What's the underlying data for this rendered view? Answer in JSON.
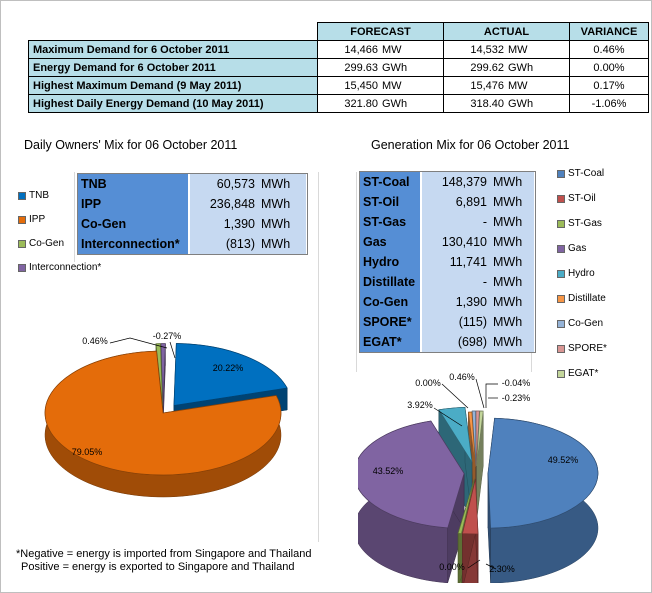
{
  "summary": {
    "headers": [
      "FORECAST",
      "ACTUAL",
      "VARIANCE"
    ],
    "rows": [
      {
        "label": "Maximum Demand for 6 October 2011",
        "forecast": "14,466",
        "forecast_unit": "MW",
        "actual": "14,532",
        "actual_unit": "MW",
        "variance": "0.46%"
      },
      {
        "label": "Energy Demand for 6 October 2011",
        "forecast": "299.63",
        "forecast_unit": "GWh",
        "actual": "299.62",
        "actual_unit": "GWh",
        "variance": "0.00%"
      },
      {
        "label": "Highest Maximum Demand (9 May 2011)",
        "forecast": "15,450",
        "forecast_unit": "MW",
        "actual": "15,476",
        "actual_unit": "MW",
        "variance": "0.17%"
      },
      {
        "label": "Highest Daily Energy Demand (10 May 2011)",
        "forecast": "321.80",
        "forecast_unit": "GWh",
        "actual": "318.40",
        "actual_unit": "GWh",
        "variance": "-1.06%"
      }
    ]
  },
  "owners_mix": {
    "title": "Daily Owners' Mix for 06 October 2011",
    "rows": [
      {
        "name": "TNB",
        "value": "60,573",
        "unit": "MWh"
      },
      {
        "name": "IPP",
        "value": "236,848",
        "unit": "MWh"
      },
      {
        "name": "Co-Gen",
        "value": "1,390",
        "unit": "MWh"
      },
      {
        "name": "Interconnection*",
        "value": "(813)",
        "unit": "MWh"
      }
    ]
  },
  "generation_mix": {
    "title": "Generation Mix for 06 October 2011",
    "rows": [
      {
        "name": "ST-Coal",
        "value": "148,379",
        "unit": "MWh"
      },
      {
        "name": "ST-Oil",
        "value": "6,891",
        "unit": "MWh"
      },
      {
        "name": "ST-Gas",
        "value": "-",
        "unit": "MWh"
      },
      {
        "name": "Gas",
        "value": "130,410",
        "unit": "MWh"
      },
      {
        "name": "Hydro",
        "value": "11,741",
        "unit": "MWh"
      },
      {
        "name": "Distillate",
        "value": "-",
        "unit": "MWh"
      },
      {
        "name": "Co-Gen",
        "value": "1,390",
        "unit": "MWh"
      },
      {
        "name": "SPORE*",
        "value": "(115)",
        "unit": "MWh"
      },
      {
        "name": "EGAT*",
        "value": "(698)",
        "unit": "MWh"
      }
    ]
  },
  "note": {
    "line1": "*Negative = energy is imported from Singapore and Thailand",
    "line2": "Positive = energy is exported to Singapore and Thailand"
  },
  "chart_data": [
    {
      "type": "pie",
      "categories": [
        "TNB",
        "IPP",
        "Co-Gen",
        "Interconnection*"
      ],
      "values": [
        20.22,
        79.05,
        0.46,
        -0.27
      ],
      "labels": [
        "20.22%",
        "79.05%",
        "0.46%",
        "-0.27%"
      ],
      "colors": [
        "#0070c0",
        "#e46c0a",
        "#9bbb59",
        "#8064a2"
      ],
      "legend_position": "left"
    },
    {
      "type": "pie",
      "categories": [
        "ST-Coal",
        "ST-Oil",
        "ST-Gas",
        "Gas",
        "Hydro",
        "Distillate",
        "Co-Gen",
        "SPORE*",
        "EGAT*"
      ],
      "values": [
        49.52,
        2.3,
        0.0,
        43.52,
        3.92,
        0.0,
        0.46,
        -0.04,
        -0.23
      ],
      "labels": [
        "49.52%",
        "2.30%",
        "0.00%",
        "43.52%",
        "3.92%",
        "0.00%",
        "0.46%",
        "-0.04%",
        "-0.23%"
      ],
      "colors": [
        "#4f81bd",
        "#c0504d",
        "#9bbb59",
        "#8064a2",
        "#4bacc6",
        "#f79646",
        "#95b3d7",
        "#d99694",
        "#c3d69b"
      ],
      "legend_position": "right"
    }
  ]
}
